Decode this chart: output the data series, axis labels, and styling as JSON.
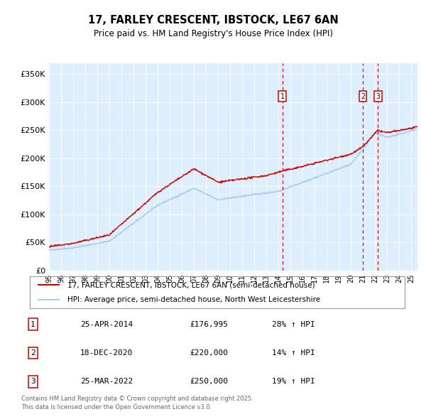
{
  "title1": "17, FARLEY CRESCENT, IBSTOCK, LE67 6AN",
  "title2": "Price paid vs. HM Land Registry's House Price Index (HPI)",
  "ylim": [
    0,
    370000
  ],
  "yticks": [
    0,
    50000,
    100000,
    150000,
    200000,
    250000,
    300000,
    350000
  ],
  "ytick_labels": [
    "£0",
    "£50K",
    "£100K",
    "£150K",
    "£200K",
    "£250K",
    "£300K",
    "£350K"
  ],
  "hpi_color": "#aaccee",
  "price_color": "#cc0000",
  "vline_color": "#cc0000",
  "plot_bg": "#ddeeff",
  "grid_color": "#ffffff",
  "legend1": "17, FARLEY CRESCENT, IBSTOCK, LE67 6AN (semi-detached house)",
  "legend2": "HPI: Average price, semi-detached house, North West Leicestershire",
  "transactions": [
    {
      "num": 1,
      "date": "25-APR-2014",
      "price": "£176,995",
      "hpi": "28% ↑ HPI",
      "year": 2014.32
    },
    {
      "num": 2,
      "date": "18-DEC-2020",
      "price": "£220,000",
      "hpi": "14% ↑ HPI",
      "year": 2020.97
    },
    {
      "num": 3,
      "date": "25-MAR-2022",
      "price": "£250,000",
      "hpi": "19% ↑ HPI",
      "year": 2022.23
    }
  ],
  "footer1": "Contains HM Land Registry data © Crown copyright and database right 2025.",
  "footer2": "This data is licensed under the Open Government Licence v3.0.",
  "xstart": 1995.0,
  "xend": 2025.5
}
